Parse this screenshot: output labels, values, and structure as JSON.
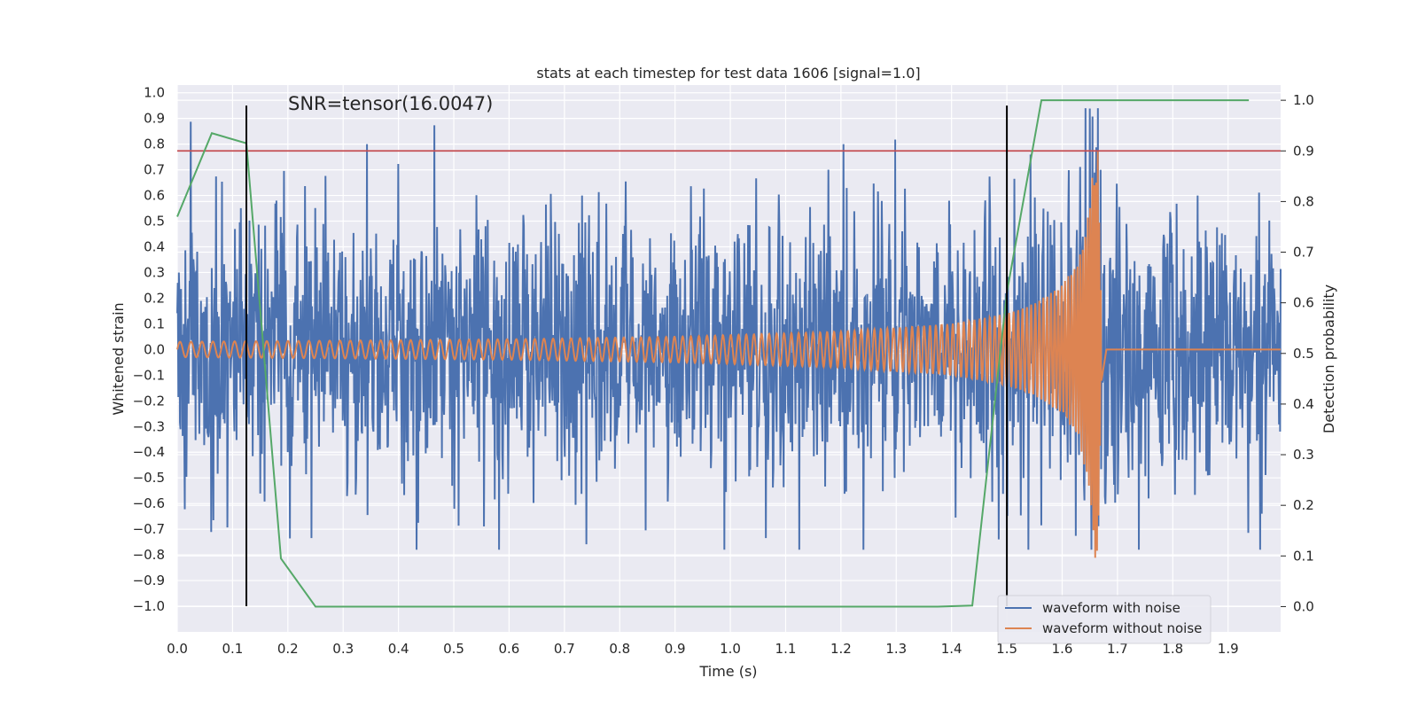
{
  "chart_data": {
    "type": "line",
    "title": "stats at each timestep for test data 1606 [signal=1.0]",
    "xlabel": "Time (s)",
    "ylabel": "Whitened strain",
    "y2label": "Detection probability",
    "annotation": "SNR=tensor(16.0047)",
    "xlim": [
      0.0,
      1.995
    ],
    "ylim": [
      -1.1,
      1.03
    ],
    "y2lim": [
      -0.05,
      1.03
    ],
    "xticks": [
      "0.0",
      "0.1",
      "0.2",
      "0.3",
      "0.4",
      "0.5",
      "0.6",
      "0.7",
      "0.8",
      "0.9",
      "1.0",
      "1.1",
      "1.2",
      "1.3",
      "1.4",
      "1.5",
      "1.6",
      "1.7",
      "1.8",
      "1.9"
    ],
    "yticks": [
      "1.0",
      "0.9",
      "0.8",
      "0.7",
      "0.6",
      "0.5",
      "0.4",
      "0.3",
      "0.2",
      "0.1",
      "0.0",
      "−0.1",
      "−0.2",
      "−0.3",
      "−0.4",
      "−0.5",
      "−0.6",
      "−0.7",
      "−0.8",
      "−0.9",
      "−1.0"
    ],
    "y2ticks": [
      "1.0",
      "0.9",
      "0.8",
      "0.7",
      "0.6",
      "0.5",
      "0.4",
      "0.3",
      "0.2",
      "0.1",
      "0.0"
    ],
    "grid": true,
    "legend_position": "lower-right",
    "series": [
      {
        "name": "waveform with noise",
        "axis": "left",
        "color": "#4c72b0",
        "description_type": "noisy whitened strain",
        "x_range": [
          0.0,
          1.995
        ],
        "approx_amplitude_range": [
          -0.78,
          0.94
        ]
      },
      {
        "name": "waveform without noise",
        "axis": "left",
        "color": "#dd8452",
        "x": [
          0.0,
          0.3,
          0.6,
          0.9,
          1.2,
          1.4,
          1.5,
          1.55,
          1.6,
          1.63,
          1.65,
          1.66,
          1.665,
          1.67,
          1.68,
          1.995
        ],
        "envelope": [
          0.03,
          0.035,
          0.04,
          0.05,
          0.07,
          0.1,
          0.14,
          0.18,
          0.25,
          0.35,
          0.55,
          0.82,
          0.78,
          0.2,
          0.0,
          0.0
        ]
      },
      {
        "name": "",
        "axis": "right",
        "color": "#55a868",
        "x": [
          0.0,
          0.0625,
          0.125,
          0.1875,
          0.25,
          0.3125,
          0.375,
          0.4375,
          0.5,
          0.5625,
          0.625,
          0.6875,
          0.75,
          0.8125,
          0.875,
          0.9375,
          1.0,
          1.0625,
          1.125,
          1.1875,
          1.25,
          1.3125,
          1.375,
          1.4375,
          1.5,
          1.5625,
          1.625,
          1.6875,
          1.75,
          1.8125,
          1.875,
          1.9375
        ],
        "y": [
          0.77,
          0.935,
          0.915,
          0.095,
          0.0,
          0.0,
          0.0,
          0.0,
          0.0,
          0.0,
          0.0,
          0.0,
          0.0,
          0.0,
          0.0,
          0.0,
          0.0,
          0.0,
          0.0,
          0.0,
          0.0,
          0.0,
          0.0,
          0.002,
          0.62,
          1.0,
          1.0,
          1.0,
          1.0,
          1.0,
          1.0,
          1.0
        ]
      }
    ],
    "threshold": {
      "axis": "right",
      "value": 0.9,
      "color": "#c44e52"
    },
    "event_markers": {
      "x": [
        0.125,
        1.5
      ],
      "color": "#000000",
      "y_top": 0.95,
      "y_bottom": -1.0
    }
  }
}
